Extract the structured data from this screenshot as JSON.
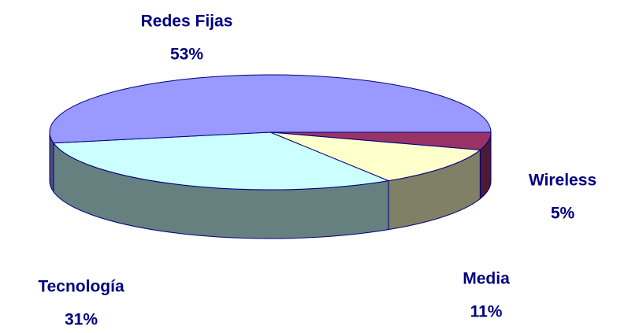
{
  "chart_data": {
    "type": "pie3d",
    "categories": [
      "Wireless",
      "Media",
      "Tecnología",
      "Redes Fijas"
    ],
    "values": [
      5,
      11,
      31,
      53
    ],
    "value_labels": [
      "5%",
      "11%",
      "31%",
      "53%"
    ],
    "colors": [
      "#993366",
      "#ffffcc",
      "#ccffff",
      "#9999ff"
    ],
    "side_colors": [
      "#4d1a33",
      "#808066",
      "#668080",
      "#4d4d80"
    ]
  }
}
